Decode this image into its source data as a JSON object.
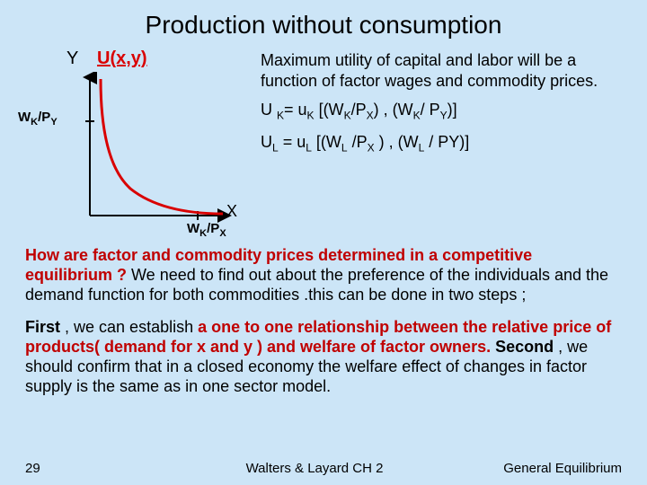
{
  "title": "Production without consumption",
  "graph": {
    "y_label": "Y",
    "u_label": "U(x,y)",
    "wkpy_html": "W<sub>K</sub>/P<sub>Y</sub>",
    "x_label": "X",
    "wkpx_html": "W<sub>K</sub>/P<sub>X</sub>",
    "axis_color": "#000000",
    "curve_color": "#d90000",
    "curve_width": 3,
    "tick_color": "#000000"
  },
  "right": {
    "intro": "Maximum utility of capital and labor will be a function of factor wages and commodity prices.",
    "eq1_html": "U <sub>K</sub>= u<sub>K</sub> [(W<sub>K</sub>/P<sub>X</sub>) , (W<sub>K</sub>/ P<sub>Y</sub>)]",
    "eq2_html": "U<sub>L</sub> =  u<sub>L</sub> [(W<sub>L</sub> /P<sub>X</sub> ) , (W<sub>L</sub> / PY)]"
  },
  "para1": {
    "lead_red": "How are factor and commodity prices determined in a competitive equilibrium ?",
    "rest": " We need to find out about the preference of the individuals and the demand function for both commodities .this can be done in two steps ;"
  },
  "para2": {
    "first_bold": "First",
    "txt1": " , we can establish ",
    "red1": "a one to one relationship between the relative price of products( demand for x and y ) and welfare of factor owners.",
    "second_bold": " Second",
    "txt2": " , we should confirm that in a closed economy the welfare effect of changes in factor supply is the same as in one sector  model."
  },
  "footer": {
    "page": "29",
    "mid": "Walters & Layard CH  2",
    "right": "General Equilibrium"
  }
}
